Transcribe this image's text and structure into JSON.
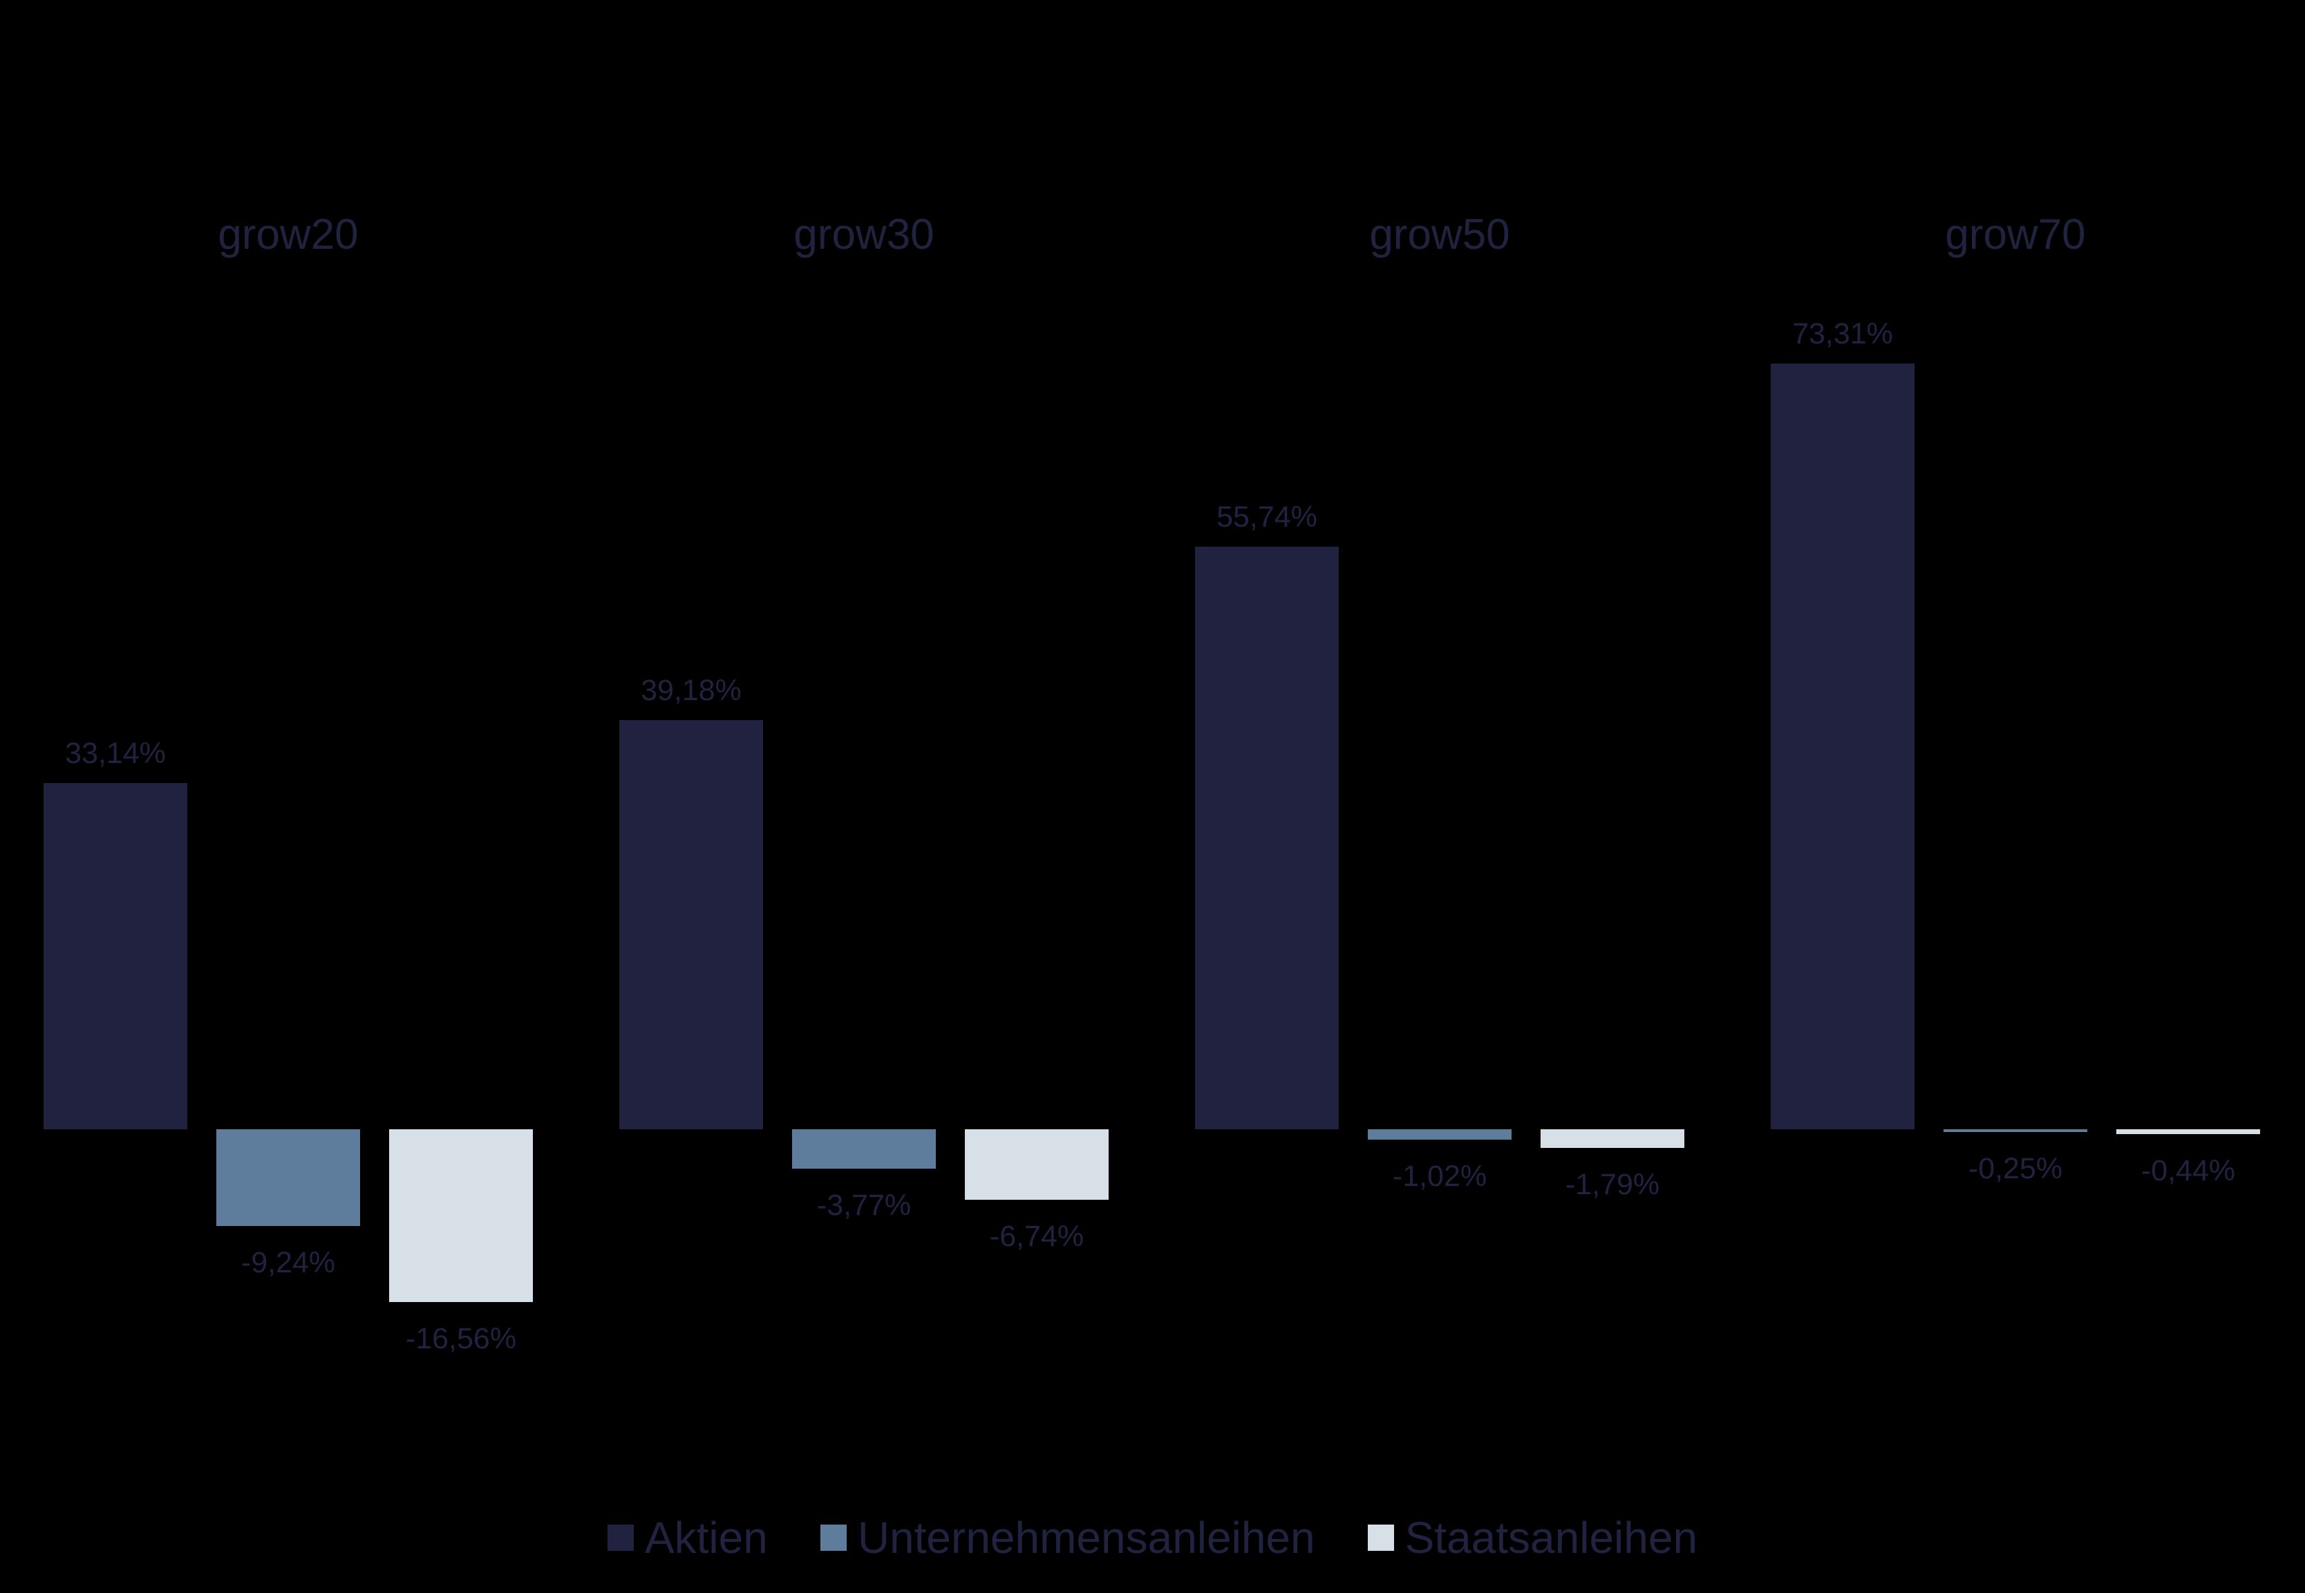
{
  "chart_data": {
    "type": "bar",
    "title": "",
    "xlabel": "",
    "ylabel": "",
    "grid": false,
    "legend_position": "bottom",
    "categories": [
      "grow20",
      "grow30",
      "grow50",
      "grow70"
    ],
    "series": [
      {
        "name": "Aktien",
        "color": "#20223f",
        "values": [
          33.14,
          39.18,
          55.74,
          73.31
        ],
        "labels": [
          "33,14%",
          "39,18%",
          "55,74%",
          "73,31%"
        ]
      },
      {
        "name": "Unternehmensanleihen",
        "color": "#5e7c9b",
        "values": [
          -9.24,
          -3.77,
          -1.02,
          -0.25
        ],
        "labels": [
          "-9,24%",
          "-3,77%",
          "-1,02%",
          "-0,25%"
        ]
      },
      {
        "name": "Staatsanleihen",
        "color": "#d7dfe7",
        "values": [
          -16.56,
          -6.74,
          -1.79,
          -0.44
        ],
        "labels": [
          "-16,56%",
          "-6,74%",
          "-1,79%",
          "-0,44%"
        ]
      }
    ],
    "ylim": [
      -20,
      80
    ],
    "value_format": "percent, comma decimal"
  },
  "colors": {
    "background": "#000000",
    "text": "#20223f"
  },
  "legend": {
    "items": [
      {
        "label": "Aktien",
        "color": "#20223f"
      },
      {
        "label": "Unternehmensanleihen",
        "color": "#5e7c9b"
      },
      {
        "label": "Staatsanleihen",
        "color": "#d7dfe7"
      }
    ]
  }
}
